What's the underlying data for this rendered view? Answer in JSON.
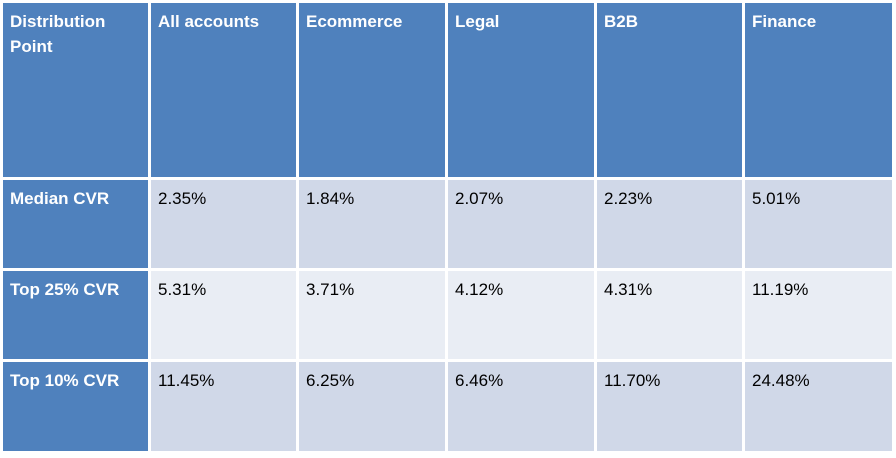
{
  "table": {
    "headers": [
      "Distribution Point",
      "All accounts",
      "Ecommerce",
      "Legal",
      "B2B",
      "Finance"
    ],
    "rows": [
      {
        "label": "Median CVR",
        "values": [
          "2.35%",
          "1.84%",
          "2.07%",
          "2.23%",
          "5.01%"
        ]
      },
      {
        "label": "Top 25% CVR",
        "values": [
          "5.31%",
          "3.71%",
          "4.12%",
          "4.31%",
          "11.19%"
        ]
      },
      {
        "label": "Top 10% CVR",
        "values": [
          "11.45%",
          "6.25%",
          "6.46%",
          "11.70%",
          "24.48%"
        ]
      }
    ],
    "colors": {
      "header_bg": "#4f81bd",
      "header_text": "#ffffff",
      "band_dark": "#d0d8e8",
      "band_light": "#e9edf4",
      "grid_line": "#ffffff"
    }
  }
}
